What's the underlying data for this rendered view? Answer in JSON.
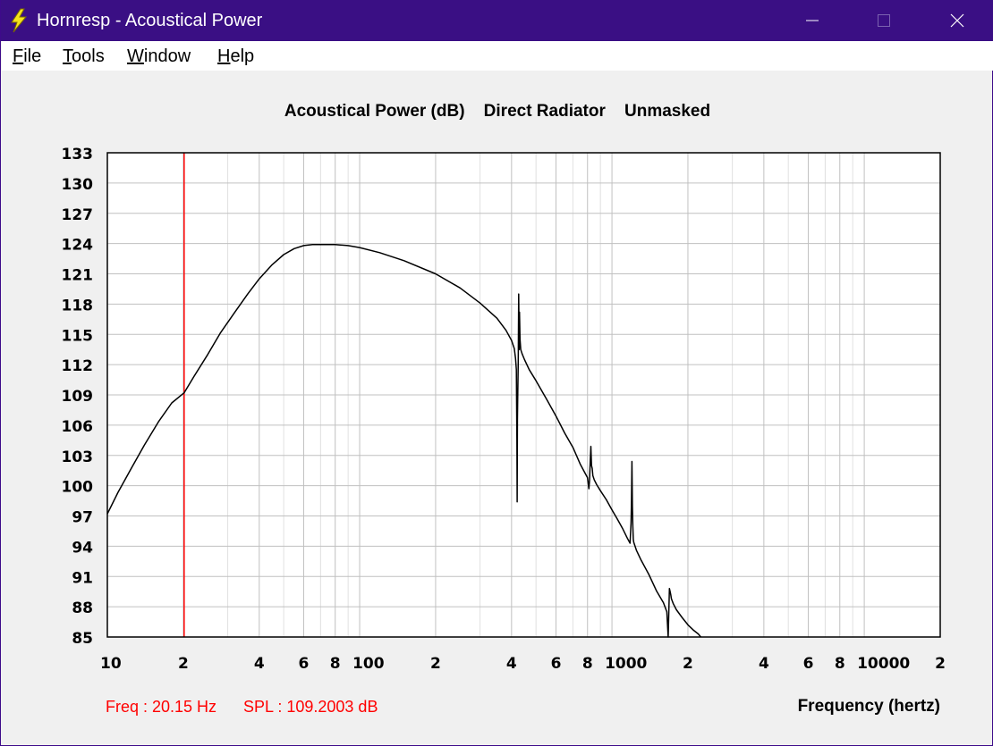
{
  "window": {
    "title": "Hornresp - Acoustical Power",
    "icon": "lightning-bolt-icon",
    "controls": {
      "minimize": "minimize-icon",
      "maximize": "maximize-icon",
      "close": "close-icon"
    }
  },
  "menu": {
    "items": [
      {
        "underline": "F",
        "rest": "ile"
      },
      {
        "underline": "T",
        "rest": "ools"
      },
      {
        "underline": "W",
        "rest": "indow"
      },
      {
        "underline": "H",
        "rest": "elp"
      }
    ]
  },
  "colors": {
    "titlebar": "#3a0f84",
    "curve": "#000000",
    "cursor": "#ff0000",
    "grid_major": "#c0c0c0",
    "grid_minor": "#e0e0e0"
  },
  "readout": {
    "freq": "Freq : 20.15 Hz",
    "spl": "SPL : 109.2003 dB"
  },
  "chart_data": {
    "type": "line",
    "title_parts": [
      "Acoustical Power (dB)",
      "Direct Radiator",
      "Unmasked"
    ],
    "xlabel": "Frequency (hertz)",
    "ylabel": "",
    "x_scale": "log",
    "xlim": [
      10,
      20000
    ],
    "ylim": [
      85,
      133
    ],
    "grid": true,
    "y_ticks": [
      "133",
      "130",
      "127",
      "124",
      "121",
      "118",
      "115",
      "112",
      "109",
      "106",
      "103",
      "100",
      "97",
      "94",
      "91",
      "88",
      "85"
    ],
    "x_ticks": [
      {
        "x": 10,
        "label": "10"
      },
      {
        "x": 20,
        "label": "2"
      },
      {
        "x": 40,
        "label": "4"
      },
      {
        "x": 60,
        "label": "6"
      },
      {
        "x": 80,
        "label": "8"
      },
      {
        "x": 100,
        "label": "100"
      },
      {
        "x": 200,
        "label": "2"
      },
      {
        "x": 400,
        "label": "4"
      },
      {
        "x": 600,
        "label": "6"
      },
      {
        "x": 800,
        "label": "8"
      },
      {
        "x": 1000,
        "label": "1000"
      },
      {
        "x": 2000,
        "label": "2"
      },
      {
        "x": 4000,
        "label": "4"
      },
      {
        "x": 6000,
        "label": "6"
      },
      {
        "x": 8000,
        "label": "8"
      },
      {
        "x": 10000,
        "label": "10000"
      },
      {
        "x": 20000,
        "label": "2"
      }
    ],
    "cursor_x": 20.15,
    "series": [
      {
        "x": [
          10,
          11,
          12.5,
          14,
          16,
          18,
          20.15,
          22,
          25,
          28,
          32,
          36,
          40,
          45,
          50,
          55,
          60,
          65,
          70,
          75,
          80,
          90,
          100,
          120,
          150,
          200,
          250,
          300,
          350,
          380,
          400,
          410,
          415,
          418,
          420,
          421,
          422,
          423,
          425,
          427,
          429,
          430,
          432,
          435,
          440,
          450,
          470,
          500,
          550,
          600,
          650,
          700,
          750,
          780,
          800,
          810,
          815,
          820,
          825,
          830,
          835,
          840,
          850,
          870,
          900,
          950,
          1000,
          1050,
          1100,
          1150,
          1180,
          1190,
          1195,
          1200,
          1205,
          1210,
          1215,
          1220,
          1250,
          1300,
          1400,
          1500,
          1600,
          1650,
          1670,
          1680,
          1690,
          1700,
          1710,
          1720,
          1750,
          1800,
          1900,
          2000,
          2100,
          2200,
          2250
        ],
        "y": [
          97.2,
          99.3,
          101.8,
          104.0,
          106.4,
          108.2,
          109.2,
          110.8,
          113.0,
          115.1,
          117.2,
          119.0,
          120.5,
          121.9,
          122.9,
          123.5,
          123.8,
          123.9,
          123.9,
          123.9,
          123.9,
          123.8,
          123.6,
          123.1,
          122.3,
          121.0,
          119.6,
          118.1,
          116.6,
          115.4,
          114.4,
          113.6,
          112.6,
          111.5,
          104.6,
          98.4,
          106.5,
          108.6,
          112.2,
          119.0,
          113.5,
          117.2,
          114.5,
          113.5,
          113.1,
          112.5,
          111.5,
          110.4,
          108.6,
          106.9,
          105.2,
          103.8,
          102.1,
          101.3,
          100.8,
          99.7,
          100.5,
          102.4,
          103.9,
          102.0,
          101.7,
          101.0,
          100.6,
          100.1,
          99.5,
          98.6,
          97.6,
          96.7,
          95.8,
          94.8,
          94.3,
          96.3,
          98.5,
          102.4,
          98.0,
          96.0,
          94.7,
          94.4,
          93.6,
          92.7,
          91.2,
          89.6,
          88.4,
          87.5,
          85.0,
          87.4,
          89.8,
          89.5,
          89.2,
          88.8,
          88.3,
          87.7,
          86.9,
          86.2,
          85.7,
          85.3,
          85.0
        ]
      }
    ]
  }
}
